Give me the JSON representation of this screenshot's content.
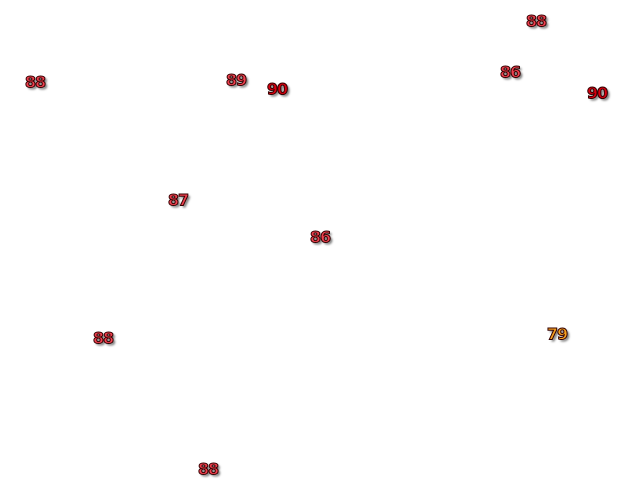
{
  "labels": [
    {
      "value": 88,
      "color": "#f0404f"
    },
    {
      "value": 89,
      "color": "#f0404f"
    },
    {
      "value": 90,
      "color": "#d80010"
    },
    {
      "value": 88,
      "color": "#f0404f"
    },
    {
      "value": 86,
      "color": "#f0404f"
    },
    {
      "value": 90,
      "color": "#d80010"
    },
    {
      "value": 87,
      "color": "#f0404f"
    },
    {
      "value": 86,
      "color": "#f0404f"
    },
    {
      "value": 88,
      "color": "#f0404f"
    },
    {
      "value": 79,
      "color": "#f5a020"
    },
    {
      "value": 88,
      "color": "#f0404f"
    }
  ]
}
